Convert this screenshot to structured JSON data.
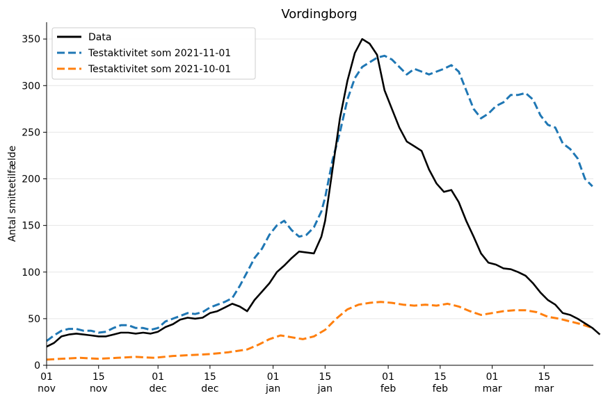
{
  "chart_data": {
    "type": "line",
    "title": "Vordingborg",
    "xlabel": "",
    "ylabel": "Antal smittetilfælde",
    "x_start": "2021-11-01",
    "x_end": "2022-03-30",
    "ylim": [
      0,
      368
    ],
    "y_ticks": [
      0,
      50,
      100,
      150,
      200,
      250,
      300,
      350
    ],
    "grid": "horizontal",
    "legend_position": "top-left",
    "x_ticks": [
      {
        "date": "2021-11-01",
        "day": "01",
        "month": "nov"
      },
      {
        "date": "2021-11-15",
        "day": "15",
        "month": "nov"
      },
      {
        "date": "2021-12-01",
        "day": "01",
        "month": "dec"
      },
      {
        "date": "2021-12-15",
        "day": "15",
        "month": "dec"
      },
      {
        "date": "2022-01-01",
        "day": "01",
        "month": "jan"
      },
      {
        "date": "2022-01-15",
        "day": "15",
        "month": "jan"
      },
      {
        "date": "2022-02-01",
        "day": "01",
        "month": "feb"
      },
      {
        "date": "2022-02-15",
        "day": "15",
        "month": "feb"
      },
      {
        "date": "2022-03-01",
        "day": "01",
        "month": "mar"
      },
      {
        "date": "2022-03-15",
        "day": "15",
        "month": "mar"
      }
    ],
    "series": [
      {
        "name": "Data",
        "color": "#000000",
        "dash": "solid",
        "points": [
          [
            "2021-11-01",
            20
          ],
          [
            "2021-11-03",
            24
          ],
          [
            "2021-11-05",
            31
          ],
          [
            "2021-11-07",
            33
          ],
          [
            "2021-11-09",
            34
          ],
          [
            "2021-11-11",
            33
          ],
          [
            "2021-11-13",
            32
          ],
          [
            "2021-11-15",
            31
          ],
          [
            "2021-11-17",
            31
          ],
          [
            "2021-11-19",
            33
          ],
          [
            "2021-11-21",
            35
          ],
          [
            "2021-11-23",
            35
          ],
          [
            "2021-11-25",
            34
          ],
          [
            "2021-11-27",
            35
          ],
          [
            "2021-11-29",
            34
          ],
          [
            "2021-12-01",
            36
          ],
          [
            "2021-12-03",
            41
          ],
          [
            "2021-12-05",
            44
          ],
          [
            "2021-12-07",
            49
          ],
          [
            "2021-12-09",
            51
          ],
          [
            "2021-12-11",
            50
          ],
          [
            "2021-12-13",
            51
          ],
          [
            "2021-12-15",
            56
          ],
          [
            "2021-12-17",
            58
          ],
          [
            "2021-12-19",
            62
          ],
          [
            "2021-12-21",
            66
          ],
          [
            "2021-12-23",
            63
          ],
          [
            "2021-12-25",
            58
          ],
          [
            "2021-12-27",
            70
          ],
          [
            "2021-12-29",
            79
          ],
          [
            "2021-12-31",
            88
          ],
          [
            "2022-01-02",
            100
          ],
          [
            "2022-01-04",
            107
          ],
          [
            "2022-01-06",
            115
          ],
          [
            "2022-01-08",
            122
          ],
          [
            "2022-01-10",
            121
          ],
          [
            "2022-01-12",
            120
          ],
          [
            "2022-01-14",
            138
          ],
          [
            "2022-01-15",
            155
          ],
          [
            "2022-01-17",
            210
          ],
          [
            "2022-01-19",
            265
          ],
          [
            "2022-01-21",
            305
          ],
          [
            "2022-01-23",
            335
          ],
          [
            "2022-01-25",
            350
          ],
          [
            "2022-01-27",
            345
          ],
          [
            "2022-01-29",
            333
          ],
          [
            "2022-01-31",
            295
          ],
          [
            "2022-02-02",
            275
          ],
          [
            "2022-02-04",
            255
          ],
          [
            "2022-02-06",
            240
          ],
          [
            "2022-02-08",
            235
          ],
          [
            "2022-02-10",
            230
          ],
          [
            "2022-02-12",
            210
          ],
          [
            "2022-02-14",
            195
          ],
          [
            "2022-02-16",
            186
          ],
          [
            "2022-02-18",
            188
          ],
          [
            "2022-02-20",
            175
          ],
          [
            "2022-02-22",
            155
          ],
          [
            "2022-02-24",
            138
          ],
          [
            "2022-02-26",
            120
          ],
          [
            "2022-02-28",
            110
          ],
          [
            "2022-03-02",
            108
          ],
          [
            "2022-03-04",
            104
          ],
          [
            "2022-03-06",
            103
          ],
          [
            "2022-03-08",
            100
          ],
          [
            "2022-03-10",
            96
          ],
          [
            "2022-03-12",
            88
          ],
          [
            "2022-03-14",
            78
          ],
          [
            "2022-03-16",
            70
          ],
          [
            "2022-03-18",
            65
          ],
          [
            "2022-03-20",
            56
          ],
          [
            "2022-03-22",
            54
          ],
          [
            "2022-03-24",
            50
          ],
          [
            "2022-03-26",
            45
          ],
          [
            "2022-03-28",
            40
          ],
          [
            "2022-03-30",
            33
          ]
        ]
      },
      {
        "name": "Testaktivitet som 2021-11-01",
        "color": "#1f77b4",
        "dash": "dashed",
        "points": [
          [
            "2021-11-01",
            26
          ],
          [
            "2021-11-03",
            32
          ],
          [
            "2021-11-05",
            37
          ],
          [
            "2021-11-07",
            39
          ],
          [
            "2021-11-09",
            39
          ],
          [
            "2021-11-11",
            37
          ],
          [
            "2021-11-13",
            37
          ],
          [
            "2021-11-15",
            35
          ],
          [
            "2021-11-17",
            36
          ],
          [
            "2021-11-19",
            40
          ],
          [
            "2021-11-21",
            43
          ],
          [
            "2021-11-23",
            43
          ],
          [
            "2021-11-25",
            40
          ],
          [
            "2021-11-27",
            40
          ],
          [
            "2021-11-29",
            38
          ],
          [
            "2021-12-01",
            40
          ],
          [
            "2021-12-03",
            47
          ],
          [
            "2021-12-05",
            50
          ],
          [
            "2021-12-07",
            53
          ],
          [
            "2021-12-09",
            56
          ],
          [
            "2021-12-11",
            55
          ],
          [
            "2021-12-13",
            57
          ],
          [
            "2021-12-15",
            62
          ],
          [
            "2021-12-17",
            65
          ],
          [
            "2021-12-19",
            68
          ],
          [
            "2021-12-21",
            72
          ],
          [
            "2021-12-23",
            85
          ],
          [
            "2021-12-25",
            100
          ],
          [
            "2021-12-27",
            115
          ],
          [
            "2021-12-29",
            125
          ],
          [
            "2021-12-31",
            140
          ],
          [
            "2022-01-02",
            150
          ],
          [
            "2022-01-04",
            155
          ],
          [
            "2022-01-06",
            145
          ],
          [
            "2022-01-08",
            138
          ],
          [
            "2022-01-10",
            140
          ],
          [
            "2022-01-12",
            148
          ],
          [
            "2022-01-14",
            165
          ],
          [
            "2022-01-15",
            180
          ],
          [
            "2022-01-17",
            220
          ],
          [
            "2022-01-19",
            250
          ],
          [
            "2022-01-21",
            285
          ],
          [
            "2022-01-23",
            308
          ],
          [
            "2022-01-25",
            320
          ],
          [
            "2022-01-27",
            325
          ],
          [
            "2022-01-29",
            330
          ],
          [
            "2022-01-31",
            332
          ],
          [
            "2022-02-02",
            328
          ],
          [
            "2022-02-04",
            320
          ],
          [
            "2022-02-06",
            312
          ],
          [
            "2022-02-08",
            318
          ],
          [
            "2022-02-10",
            315
          ],
          [
            "2022-02-12",
            312
          ],
          [
            "2022-02-14",
            315
          ],
          [
            "2022-02-16",
            318
          ],
          [
            "2022-02-18",
            322
          ],
          [
            "2022-02-20",
            315
          ],
          [
            "2022-02-22",
            295
          ],
          [
            "2022-02-24",
            275
          ],
          [
            "2022-02-26",
            265
          ],
          [
            "2022-02-28",
            270
          ],
          [
            "2022-03-02",
            278
          ],
          [
            "2022-03-04",
            282
          ],
          [
            "2022-03-06",
            290
          ],
          [
            "2022-03-08",
            290
          ],
          [
            "2022-03-10",
            292
          ],
          [
            "2022-03-12",
            285
          ],
          [
            "2022-03-14",
            268
          ],
          [
            "2022-03-16",
            258
          ],
          [
            "2022-03-18",
            255
          ],
          [
            "2022-03-20",
            238
          ],
          [
            "2022-03-22",
            232
          ],
          [
            "2022-03-24",
            222
          ],
          [
            "2022-03-26",
            200
          ],
          [
            "2022-03-28",
            192
          ]
        ]
      },
      {
        "name": "Testaktivitet som 2021-10-01",
        "color": "#ff7f0e",
        "dash": "dashed",
        "points": [
          [
            "2021-11-01",
            6
          ],
          [
            "2021-11-05",
            7
          ],
          [
            "2021-11-10",
            8
          ],
          [
            "2021-11-15",
            7
          ],
          [
            "2021-11-20",
            8
          ],
          [
            "2021-11-25",
            9
          ],
          [
            "2021-11-30",
            8
          ],
          [
            "2021-12-05",
            10
          ],
          [
            "2021-12-10",
            11
          ],
          [
            "2021-12-15",
            12
          ],
          [
            "2021-12-20",
            14
          ],
          [
            "2021-12-25",
            17
          ],
          [
            "2021-12-28",
            22
          ],
          [
            "2021-12-31",
            28
          ],
          [
            "2022-01-03",
            32
          ],
          [
            "2022-01-06",
            30
          ],
          [
            "2022-01-09",
            28
          ],
          [
            "2022-01-12",
            31
          ],
          [
            "2022-01-15",
            38
          ],
          [
            "2022-01-18",
            50
          ],
          [
            "2022-01-21",
            60
          ],
          [
            "2022-01-24",
            65
          ],
          [
            "2022-01-27",
            67
          ],
          [
            "2022-01-30",
            68
          ],
          [
            "2022-02-02",
            67
          ],
          [
            "2022-02-05",
            65
          ],
          [
            "2022-02-08",
            64
          ],
          [
            "2022-02-11",
            65
          ],
          [
            "2022-02-14",
            64
          ],
          [
            "2022-02-17",
            66
          ],
          [
            "2022-02-20",
            63
          ],
          [
            "2022-02-23",
            58
          ],
          [
            "2022-02-26",
            54
          ],
          [
            "2022-03-01",
            56
          ],
          [
            "2022-03-04",
            58
          ],
          [
            "2022-03-07",
            59
          ],
          [
            "2022-03-10",
            59
          ],
          [
            "2022-03-13",
            57
          ],
          [
            "2022-03-16",
            52
          ],
          [
            "2022-03-19",
            50
          ],
          [
            "2022-03-22",
            47
          ],
          [
            "2022-03-25",
            44
          ],
          [
            "2022-03-28",
            40
          ]
        ]
      }
    ]
  }
}
